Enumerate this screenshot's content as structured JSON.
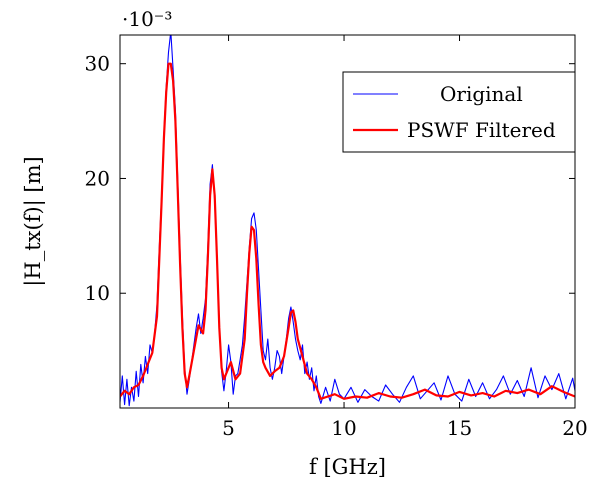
{
  "chart_data": {
    "type": "line",
    "title": "",
    "xlabel": "f [GHz]",
    "ylabel": "|H_tx(f)| [m]",
    "y_multiplier_label": "·10⁻³",
    "xlim": [
      0.3,
      20
    ],
    "ylim": [
      0,
      32.5
    ],
    "x_ticks": [
      5,
      10,
      15,
      20
    ],
    "y_ticks": [
      10,
      20,
      30
    ],
    "grid": false,
    "legend_position": "top-right",
    "series": [
      {
        "name": "Original",
        "color": "#0000ff",
        "x": [
          0.3,
          0.4,
          0.5,
          0.6,
          0.7,
          0.8,
          0.9,
          1.0,
          1.1,
          1.2,
          1.3,
          1.4,
          1.5,
          1.6,
          1.7,
          1.8,
          1.9,
          2.0,
          2.1,
          2.2,
          2.3,
          2.4,
          2.5,
          2.6,
          2.7,
          2.8,
          2.9,
          3.0,
          3.1,
          3.2,
          3.3,
          3.4,
          3.5,
          3.6,
          3.7,
          3.8,
          3.9,
          4.0,
          4.1,
          4.2,
          4.3,
          4.4,
          4.5,
          4.6,
          4.7,
          4.8,
          4.9,
          5.0,
          5.1,
          5.2,
          5.3,
          5.4,
          5.5,
          5.6,
          5.7,
          5.8,
          5.9,
          6.0,
          6.1,
          6.2,
          6.3,
          6.4,
          6.5,
          6.6,
          6.7,
          6.8,
          6.9,
          7.0,
          7.1,
          7.2,
          7.3,
          7.4,
          7.5,
          7.6,
          7.7,
          7.8,
          7.9,
          8.0,
          8.1,
          8.2,
          8.3,
          8.4,
          8.5,
          8.6,
          8.7,
          8.8,
          8.9,
          9.0,
          9.2,
          9.4,
          9.6,
          9.8,
          10.0,
          10.3,
          10.6,
          10.9,
          11.2,
          11.5,
          11.8,
          12.1,
          12.4,
          12.7,
          13.0,
          13.3,
          13.6,
          13.9,
          14.2,
          14.5,
          14.8,
          15.1,
          15.4,
          15.7,
          16.0,
          16.3,
          16.6,
          16.9,
          17.2,
          17.5,
          17.8,
          18.1,
          18.4,
          18.7,
          19.0,
          19.3,
          19.6,
          19.9,
          20.0
        ],
        "values": [
          0.5,
          2.8,
          0.3,
          2.5,
          0.2,
          1.8,
          0.6,
          3.2,
          1.0,
          3.8,
          2.2,
          4.5,
          3.0,
          5.5,
          4.8,
          6.5,
          9.0,
          14.0,
          18.5,
          24.0,
          28.0,
          31.0,
          32.8,
          29.5,
          26.0,
          20.0,
          13.5,
          8.0,
          3.5,
          1.2,
          2.5,
          4.0,
          5.5,
          7.0,
          8.2,
          6.5,
          7.8,
          9.5,
          14.0,
          19.5,
          21.2,
          18.0,
          12.5,
          7.0,
          3.2,
          1.5,
          3.2,
          5.5,
          4.0,
          1.2,
          2.8,
          3.0,
          4.2,
          5.5,
          8.0,
          11.0,
          14.0,
          16.5,
          17.0,
          15.5,
          12.0,
          8.5,
          5.0,
          4.2,
          6.0,
          3.5,
          2.5,
          3.5,
          5.0,
          4.5,
          3.0,
          4.5,
          6.0,
          7.8,
          8.8,
          7.5,
          6.0,
          5.0,
          4.2,
          5.5,
          3.0,
          4.0,
          2.5,
          3.5,
          1.5,
          2.8,
          1.0,
          0.4,
          1.8,
          0.6,
          2.5,
          1.2,
          0.8,
          1.8,
          0.5,
          1.6,
          1.0,
          0.6,
          2.0,
          1.2,
          0.5,
          1.8,
          2.8,
          0.8,
          1.5,
          2.2,
          0.7,
          2.8,
          1.2,
          0.6,
          2.5,
          1.0,
          2.2,
          0.8,
          1.6,
          2.8,
          1.2,
          2.4,
          1.0,
          3.5,
          0.9,
          2.8,
          1.6,
          3.0,
          0.8,
          2.6,
          1.5
        ]
      },
      {
        "name": "PSWF Filtered",
        "color": "#ff0000",
        "x": [
          0.3,
          0.5,
          0.7,
          0.9,
          1.1,
          1.3,
          1.5,
          1.7,
          1.9,
          2.0,
          2.1,
          2.2,
          2.3,
          2.4,
          2.5,
          2.6,
          2.7,
          2.8,
          2.9,
          3.0,
          3.1,
          3.2,
          3.3,
          3.5,
          3.7,
          3.9,
          4.0,
          4.1,
          4.2,
          4.3,
          4.4,
          4.5,
          4.6,
          4.7,
          4.8,
          4.9,
          5.1,
          5.3,
          5.5,
          5.7,
          5.8,
          5.9,
          6.0,
          6.1,
          6.2,
          6.3,
          6.4,
          6.5,
          6.6,
          6.8,
          7.0,
          7.2,
          7.4,
          7.6,
          7.7,
          7.8,
          7.9,
          8.0,
          8.2,
          8.4,
          8.6,
          8.8,
          9.0,
          9.3,
          9.6,
          10.0,
          10.5,
          11.0,
          11.5,
          12.0,
          12.5,
          13.0,
          13.5,
          14.0,
          14.5,
          15.0,
          15.5,
          16.0,
          16.5,
          17.0,
          17.5,
          18.0,
          18.5,
          19.0,
          19.5,
          20.0
        ],
        "values": [
          1.0,
          1.5,
          1.2,
          1.8,
          2.0,
          2.8,
          3.8,
          4.8,
          8.0,
          13.0,
          18.0,
          23.5,
          27.5,
          30.0,
          30.0,
          28.5,
          25.0,
          19.0,
          12.5,
          7.0,
          3.0,
          1.8,
          2.8,
          5.0,
          7.2,
          6.5,
          8.5,
          13.0,
          18.5,
          20.8,
          18.5,
          13.0,
          7.0,
          3.5,
          2.5,
          3.0,
          4.0,
          2.5,
          3.0,
          6.0,
          10.0,
          13.5,
          15.8,
          15.5,
          13.0,
          9.0,
          5.5,
          4.0,
          3.5,
          2.8,
          3.2,
          3.5,
          4.5,
          7.0,
          8.3,
          8.5,
          7.5,
          6.0,
          4.5,
          3.0,
          2.5,
          1.8,
          0.8,
          1.0,
          1.2,
          0.8,
          1.0,
          0.9,
          1.3,
          1.0,
          0.9,
          1.2,
          1.6,
          1.1,
          1.0,
          1.4,
          1.1,
          1.3,
          1.0,
          1.5,
          1.3,
          1.6,
          1.2,
          1.9,
          1.4,
          1.0
        ]
      }
    ]
  }
}
